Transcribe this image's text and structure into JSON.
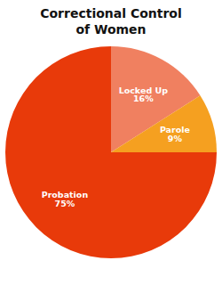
{
  "chart_data": {
    "type": "pie",
    "title": "Correctional Control\nof Women",
    "categories": [
      "Locked Up",
      "Parole",
      "Probation"
    ],
    "values": [
      16,
      9,
      75
    ],
    "value_labels": [
      "16%",
      "9%",
      "75%"
    ],
    "data_labels": true,
    "colors": [
      "#F08060",
      "#F5A020",
      "#E83A0A"
    ]
  }
}
